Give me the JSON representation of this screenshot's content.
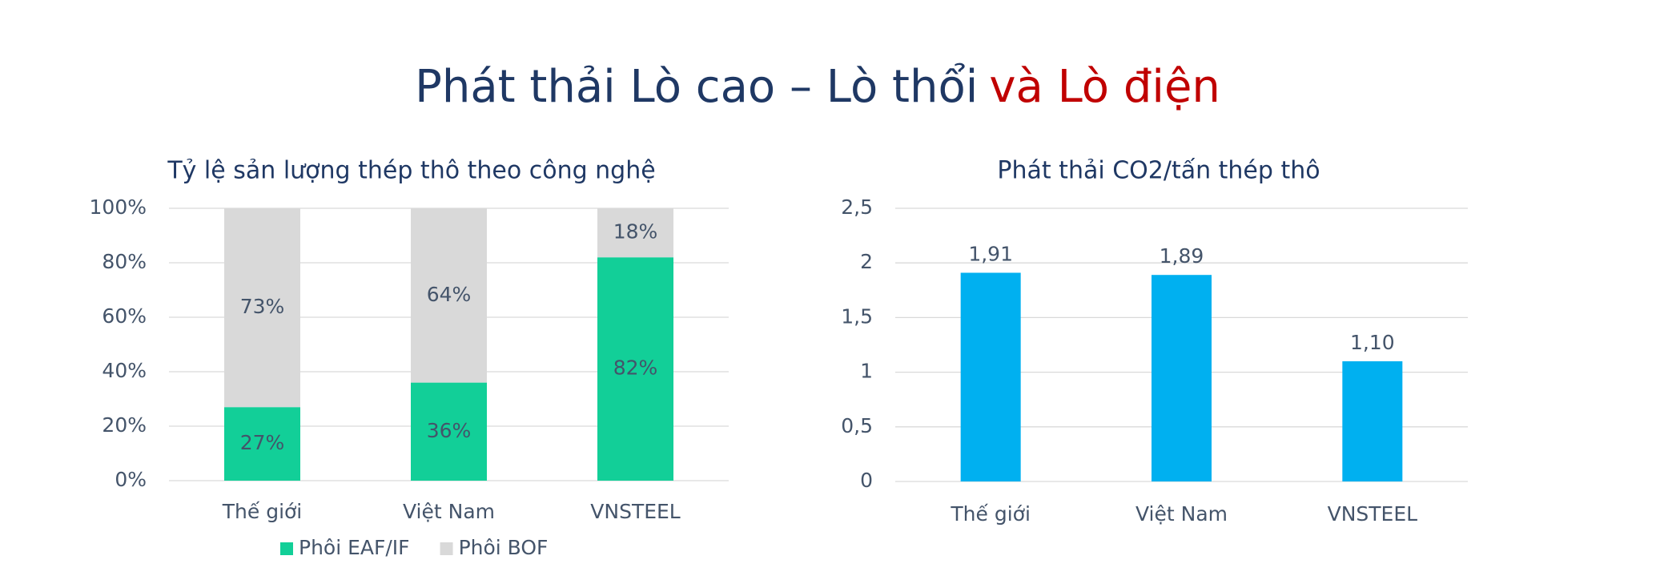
{
  "title": {
    "main": "Phát thải Lò cao – Lò thổi",
    "highlight": "và Lò điện"
  },
  "chart_data": [
    {
      "type": "stacked-bar",
      "title": "Tỷ lệ sản lượng thép thô theo công nghệ",
      "categories": [
        "Thế giới",
        "Việt Nam",
        "VNSTEEL"
      ],
      "series": [
        {
          "name": "Phôi EAF/IF",
          "color": "#12cf98",
          "values": [
            27,
            36,
            82
          ],
          "value_labels": [
            "27%",
            "36%",
            "82%"
          ]
        },
        {
          "name": "Phôi BOF",
          "color": "#d9d9d9",
          "values": [
            73,
            64,
            18
          ],
          "value_labels": [
            "73%",
            "64%",
            "18%"
          ]
        }
      ],
      "ylim": [
        0,
        100
      ],
      "yticks": [
        {
          "value": 0,
          "label": "0%"
        },
        {
          "value": 20,
          "label": "20%"
        },
        {
          "value": 40,
          "label": "40%"
        },
        {
          "value": 60,
          "label": "60%"
        },
        {
          "value": 80,
          "label": "80%"
        },
        {
          "value": 100,
          "label": "100%"
        }
      ],
      "grid": true,
      "legend": "bottom"
    },
    {
      "type": "bar",
      "title": "Phát thải CO2/tấn thép thô",
      "categories": [
        "Thế giới",
        "Việt Nam",
        "VNSTEEL"
      ],
      "values": [
        1.91,
        1.89,
        1.1
      ],
      "value_labels": [
        "1,91",
        "1,89",
        "1,10"
      ],
      "color": "#00b0f0",
      "ylim": [
        0,
        2.5
      ],
      "yticks": [
        0,
        {
          "value": 0.5,
          "label": "0,5"
        },
        1,
        {
          "value": 1.5,
          "label": "1,5"
        },
        2,
        {
          "value": 2.5,
          "label": "2,5"
        }
      ],
      "grid": true
    }
  ]
}
